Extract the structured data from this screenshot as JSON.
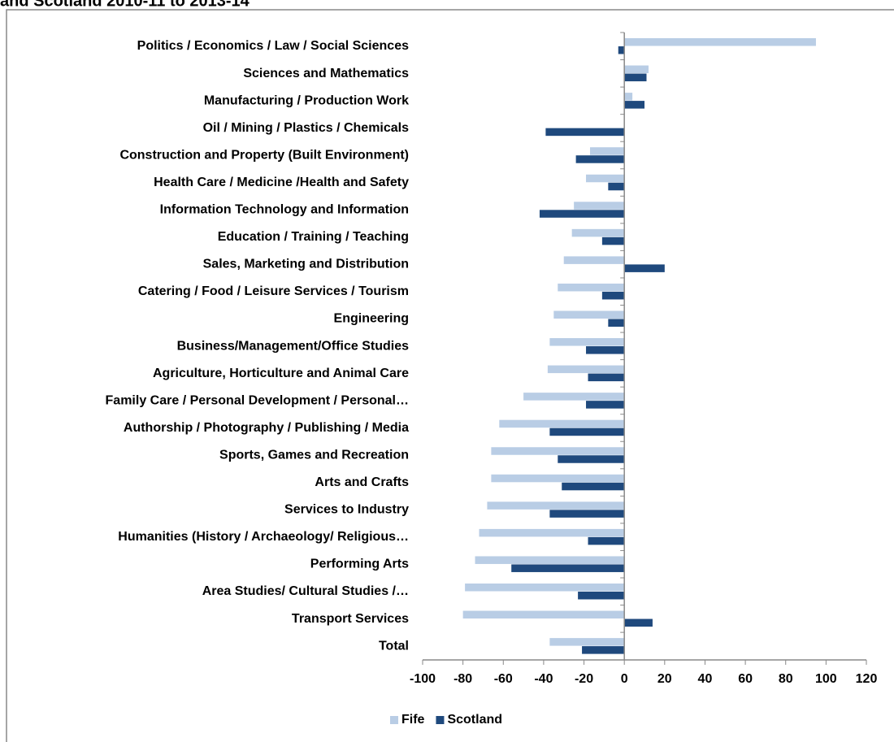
{
  "chart_data": {
    "type": "hbar",
    "title": "and Scotland 2010-11 to 2013-14",
    "categories": [
      "Politics / Economics / Law / Social Sciences",
      "Sciences and Mathematics",
      "Manufacturing / Production Work",
      "Oil / Mining / Plastics / Chemicals",
      "Construction and Property (Built Environment)",
      "Health Care / Medicine /Health and Safety",
      "Information Technology and Information",
      "Education / Training / Teaching",
      "Sales, Marketing and Distribution",
      "Catering / Food / Leisure Services / Tourism",
      "Engineering",
      "Business/Management/Office Studies",
      "Agriculture, Horticulture and Animal Care",
      "Family Care / Personal Development / Personal…",
      "Authorship / Photography / Publishing / Media",
      "Sports, Games and Recreation",
      "Arts and Crafts",
      "Services to Industry",
      "Humanities (History / Archaeology/ Religious…",
      "Performing Arts",
      "Area Studies/ Cultural Studies /…",
      "Transport Services",
      "Total"
    ],
    "series": [
      {
        "name": "Fife",
        "color": "#b9cde5",
        "values": [
          95,
          12,
          4,
          0,
          -17,
          -19,
          -25,
          -26,
          -30,
          -33,
          -35,
          -37,
          -38,
          -50,
          -62,
          -66,
          -66,
          -68,
          -72,
          -74,
          -79,
          -80,
          -37
        ]
      },
      {
        "name": "Scotland",
        "color": "#1f497d",
        "values": [
          -3,
          11,
          10,
          -39,
          -24,
          -8,
          -42,
          -11,
          20,
          -11,
          -8,
          -19,
          -18,
          -19,
          -37,
          -33,
          -31,
          -37,
          -18,
          -56,
          -23,
          14,
          -21
        ]
      }
    ],
    "xlim": [
      -100,
      120
    ],
    "xticks": [
      -100,
      -80,
      -60,
      -40,
      -20,
      0,
      20,
      40,
      60,
      80,
      100,
      120
    ],
    "legend": "bottom"
  }
}
